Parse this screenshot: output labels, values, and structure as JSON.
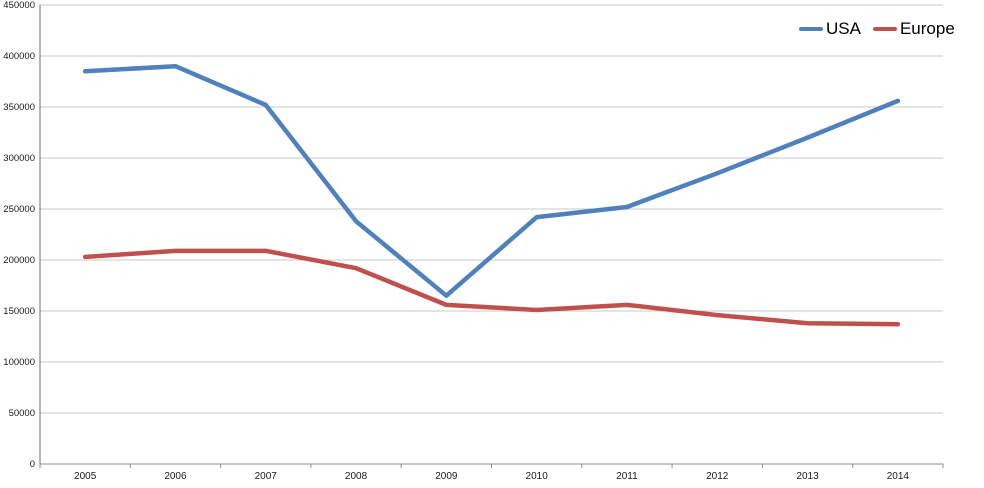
{
  "chart_data": {
    "type": "line",
    "title": "",
    "categories": [
      "2005",
      "2006",
      "2007",
      "2008",
      "2009",
      "2010",
      "2011",
      "2012",
      "2013",
      "2014"
    ],
    "series": [
      {
        "name": "USA",
        "color": "#4f81bd",
        "values": [
          385000,
          390000,
          352000,
          238000,
          165000,
          242000,
          252000,
          285000,
          320000,
          356000
        ]
      },
      {
        "name": "Europe",
        "color": "#c0504d",
        "values": [
          203000,
          209000,
          209000,
          192000,
          156000,
          151000,
          156000,
          146000,
          138000,
          137000
        ]
      }
    ],
    "xlabel": "",
    "ylabel": "",
    "ylim": [
      0,
      450000
    ],
    "ytick_step": 50000,
    "yticks": [
      "0",
      "50000",
      "100000",
      "150000",
      "200000",
      "250000",
      "300000",
      "350000",
      "400000",
      "450000"
    ],
    "grid": "horizontal",
    "legend_position": "top-right",
    "gridline_color": "#c9c9c9",
    "axis_line_color": "#8c8c8c",
    "tick_label_color": "#1a1a1a"
  }
}
